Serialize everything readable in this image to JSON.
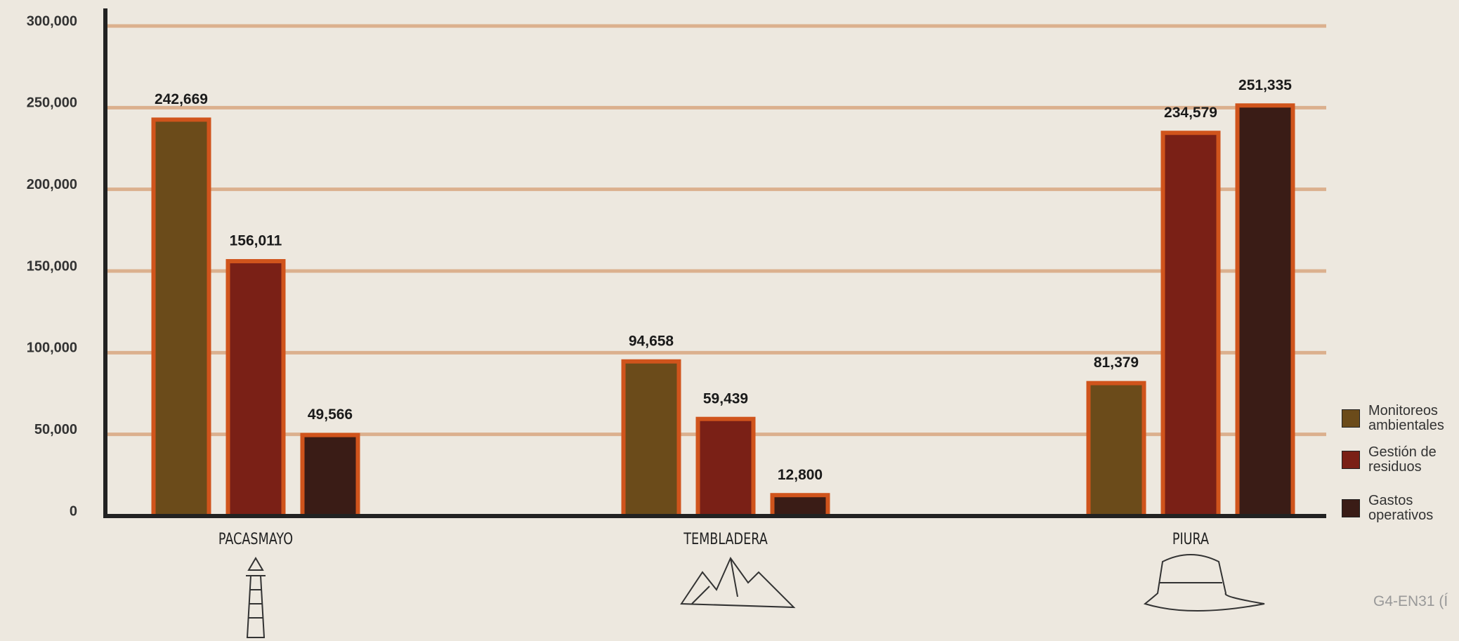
{
  "chart_data": {
    "type": "bar",
    "categories": [
      "PACASMAYO",
      "TEMBLADERA",
      "PIURA"
    ],
    "series": [
      {
        "name": "Monitoreos ambientales",
        "color": "#6b4b1a",
        "values": [
          242669,
          94658,
          81379
        ],
        "value_labels": [
          "242,669",
          "94,658",
          "81,379"
        ]
      },
      {
        "name": "Gestión de residuos",
        "color": "#7a2016",
        "values": [
          156011,
          59439,
          234579
        ],
        "value_labels": [
          "156,011",
          "59,439",
          "234,579"
        ]
      },
      {
        "name": "Gastos operativos",
        "color": "#3a1c16",
        "values": [
          49566,
          12800,
          251335
        ],
        "value_labels": [
          "49,566",
          "12,800",
          "251,335"
        ]
      }
    ],
    "ylim": [
      0,
      300000
    ],
    "yticks": [
      {
        "value": 0,
        "label": "0"
      },
      {
        "value": 50000,
        "label": "50,000"
      },
      {
        "value": 100000,
        "label": "100,000"
      },
      {
        "value": 150000,
        "label": "150,000"
      },
      {
        "value": 200000,
        "label": "200,000"
      },
      {
        "value": 250000,
        "label": "250,000"
      },
      {
        "value": 300000,
        "label": "300,000"
      }
    ],
    "grid": true,
    "legend": "right",
    "note": "G4-EN31 (Í"
  }
}
